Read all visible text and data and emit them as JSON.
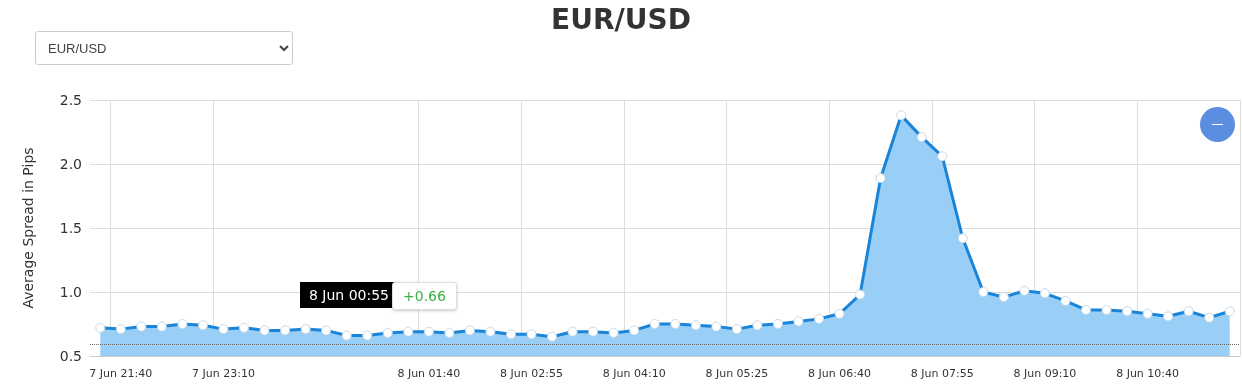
{
  "chart_data": {
    "type": "area",
    "title": "EUR/USD",
    "ylabel": "Average Spread in Pips",
    "categories": [
      null,
      "7 Jun 21:40",
      null,
      null,
      null,
      null,
      "7 Jun 23:10",
      null,
      null,
      null,
      null,
      null,
      null,
      null,
      null,
      null,
      "8 Jun 01:40",
      null,
      null,
      null,
      null,
      "8 Jun 02:55",
      null,
      null,
      null,
      null,
      "8 Jun 04:10",
      null,
      null,
      null,
      null,
      "8 Jun 05:25",
      null,
      null,
      null,
      null,
      "8 Jun 06:40",
      null,
      null,
      null,
      null,
      "8 Jun 07:55",
      null,
      null,
      null,
      null,
      "8 Jun 09:10",
      null,
      null,
      null,
      null,
      "8 Jun 10:40",
      null,
      null,
      null,
      null
    ],
    "series": [
      {
        "color": "#1a84d8",
        "values": [
          0.72,
          0.71,
          0.73,
          0.73,
          0.75,
          0.74,
          0.71,
          0.72,
          0.7,
          0.7,
          0.71,
          0.7,
          0.66,
          0.66,
          0.68,
          0.69,
          0.69,
          0.68,
          0.7,
          0.69,
          0.67,
          0.67,
          0.65,
          0.69,
          0.69,
          0.68,
          0.7,
          0.75,
          0.75,
          0.74,
          0.73,
          0.71,
          0.74,
          0.75,
          0.77,
          0.79,
          0.83,
          0.98,
          1.89,
          2.38,
          2.21,
          2.06,
          1.42,
          1.0,
          0.96,
          1.01,
          0.99,
          0.93,
          0.86,
          0.86,
          0.85,
          0.83,
          0.81,
          0.85,
          0.8,
          0.85
        ]
      }
    ],
    "ylim": [
      0.5,
      2.5
    ],
    "yticks": [
      {
        "value": 0.5,
        "label": "0.5"
      },
      {
        "value": 1,
        "label": "1.0"
      },
      {
        "value": 1.5,
        "label": "1.5"
      },
      {
        "value": 2,
        "label": "2.0"
      },
      {
        "value": 2.5,
        "label": "2.5"
      }
    ],
    "grid": true,
    "marker": "circle",
    "line_style": "solid",
    "ref_lines": [
      {
        "axis": "y",
        "value": 0.59,
        "color": "#666666",
        "line_style": "dotted"
      }
    ],
    "annotations": [
      "EUR/USD",
      "8 Jun 00:55",
      "+0.66"
    ]
  }
}
